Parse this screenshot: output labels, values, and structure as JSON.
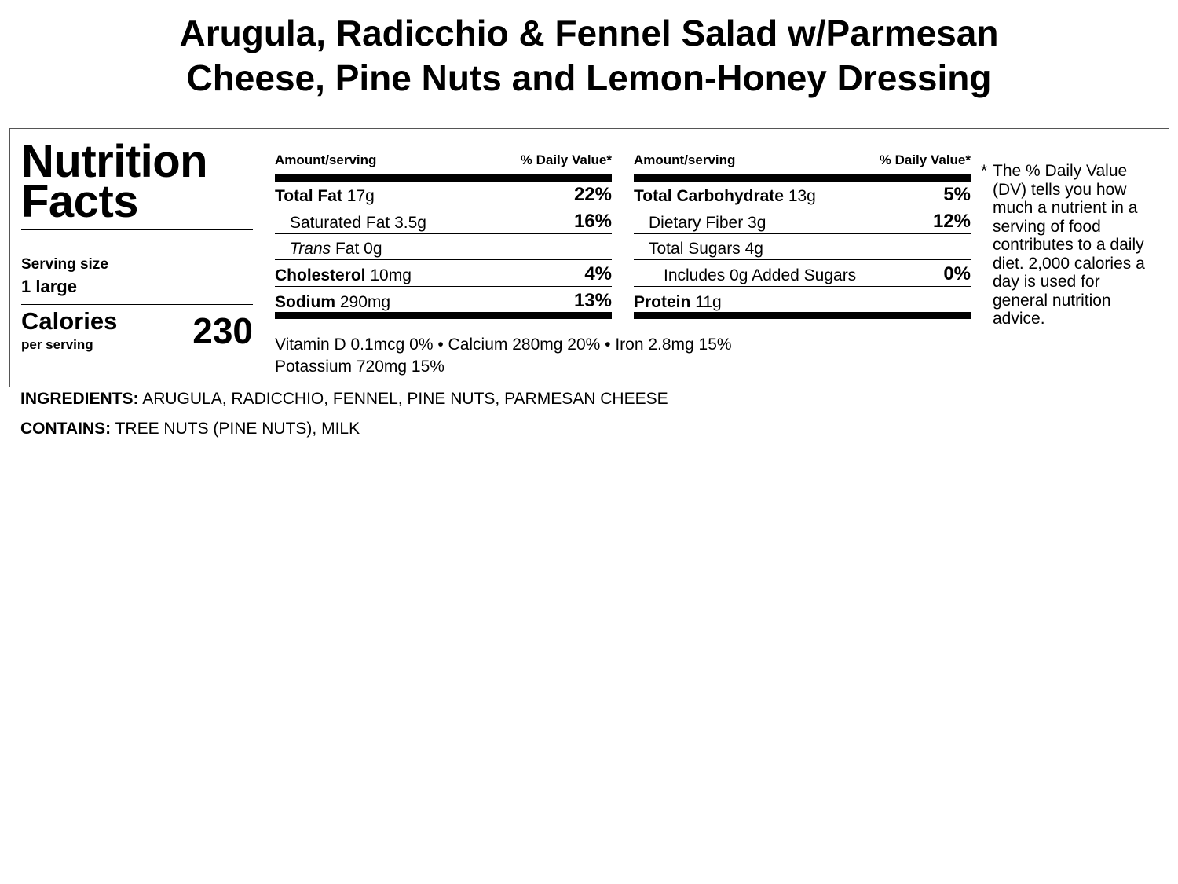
{
  "title": {
    "line1": "Arugula, Radicchio & Fennel Salad w/Parmesan",
    "line2": "Cheese, Pine Nuts and Lemon-Honey Dressing"
  },
  "label": {
    "heading_line1": "Nutrition",
    "heading_line2": "Facts",
    "serving_size_label": "Serving size",
    "serving_size_value": "1 large",
    "calories_label": "Calories",
    "per_serving": "per serving",
    "calories_value": "230",
    "header_amount": "Amount/serving",
    "header_dv": "% Daily Value*",
    "left_rows": [
      {
        "name": "Total Fat",
        "amount": "17g",
        "dv": "22%"
      },
      {
        "name": "Saturated Fat",
        "amount": "3.5g",
        "dv": "16%"
      },
      {
        "name_italic": "Trans",
        "name": "Fat",
        "amount": "0g",
        "dv": ""
      },
      {
        "name": "Cholesterol",
        "amount": "10mg",
        "dv": "4%"
      },
      {
        "name": "Sodium",
        "amount": "290mg",
        "dv": "13%"
      }
    ],
    "right_rows": [
      {
        "name": "Total Carbohydrate",
        "amount": "13g",
        "dv": "5%"
      },
      {
        "name": "Dietary Fiber",
        "amount": "3g",
        "dv": "12%"
      },
      {
        "name": "Total Sugars",
        "amount": "4g",
        "dv": ""
      },
      {
        "name": "Includes 0g Added Sugars",
        "amount": "",
        "dv": "0%"
      },
      {
        "name": "Protein",
        "amount": "11g",
        "dv": ""
      }
    ],
    "vitamins_line1": "Vitamin D 0.1mcg 0% • Calcium 280mg 20% • Iron 2.8mg 15%",
    "vitamins_line2": "Potassium 720mg 15%",
    "footnote_star": "*",
    "footnote": "The % Daily Value (DV) tells you how much a nutrient in a serving of food contributes to a daily diet. 2,000 calories a day is used for general nutrition advice."
  },
  "ingredients": {
    "label": "INGREDIENTS:",
    "value": "ARUGULA, RADICCHIO, FENNEL, PINE NUTS, PARMESAN CHEESE"
  },
  "contains": {
    "label": "CONTAINS:",
    "value": "TREE NUTS (PINE NUTS), MILK"
  }
}
